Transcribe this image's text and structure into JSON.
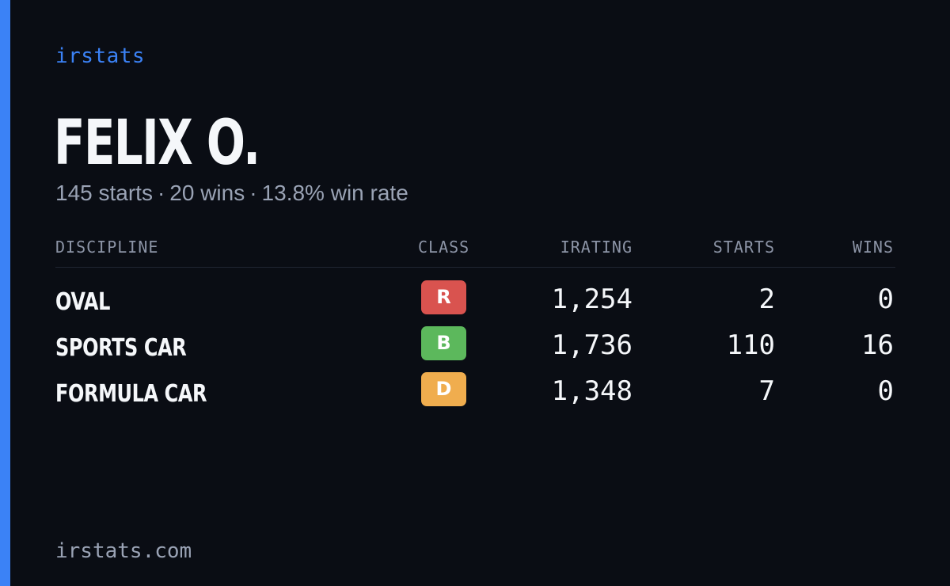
{
  "brand": "irstats",
  "driver": {
    "name": "FELIX O.",
    "summary": {
      "starts": "145 starts",
      "wins": "20 wins",
      "win_rate": "13.8% win rate",
      "separator": "·"
    }
  },
  "table": {
    "headers": {
      "discipline": "DISCIPLINE",
      "class": "CLASS",
      "irating": "IRATING",
      "starts": "STARTS",
      "wins": "WINS"
    },
    "rows": [
      {
        "discipline": "OVAL",
        "class": "R",
        "class_color": "#d9534f",
        "irating": "1,254",
        "starts": "2",
        "wins": "0"
      },
      {
        "discipline": "SPORTS CAR",
        "class": "B",
        "class_color": "#5cb85c",
        "irating": "1,736",
        "starts": "110",
        "wins": "16"
      },
      {
        "discipline": "FORMULA CAR",
        "class": "D",
        "class_color": "#f0ad4e",
        "irating": "1,348",
        "starts": "7",
        "wins": "0"
      }
    ]
  },
  "footer": "irstats.com",
  "colors": {
    "background": "#0a0d14",
    "accent": "#3b82f6",
    "text_primary": "#f5f7fa",
    "text_secondary": "#9aa3b5"
  }
}
